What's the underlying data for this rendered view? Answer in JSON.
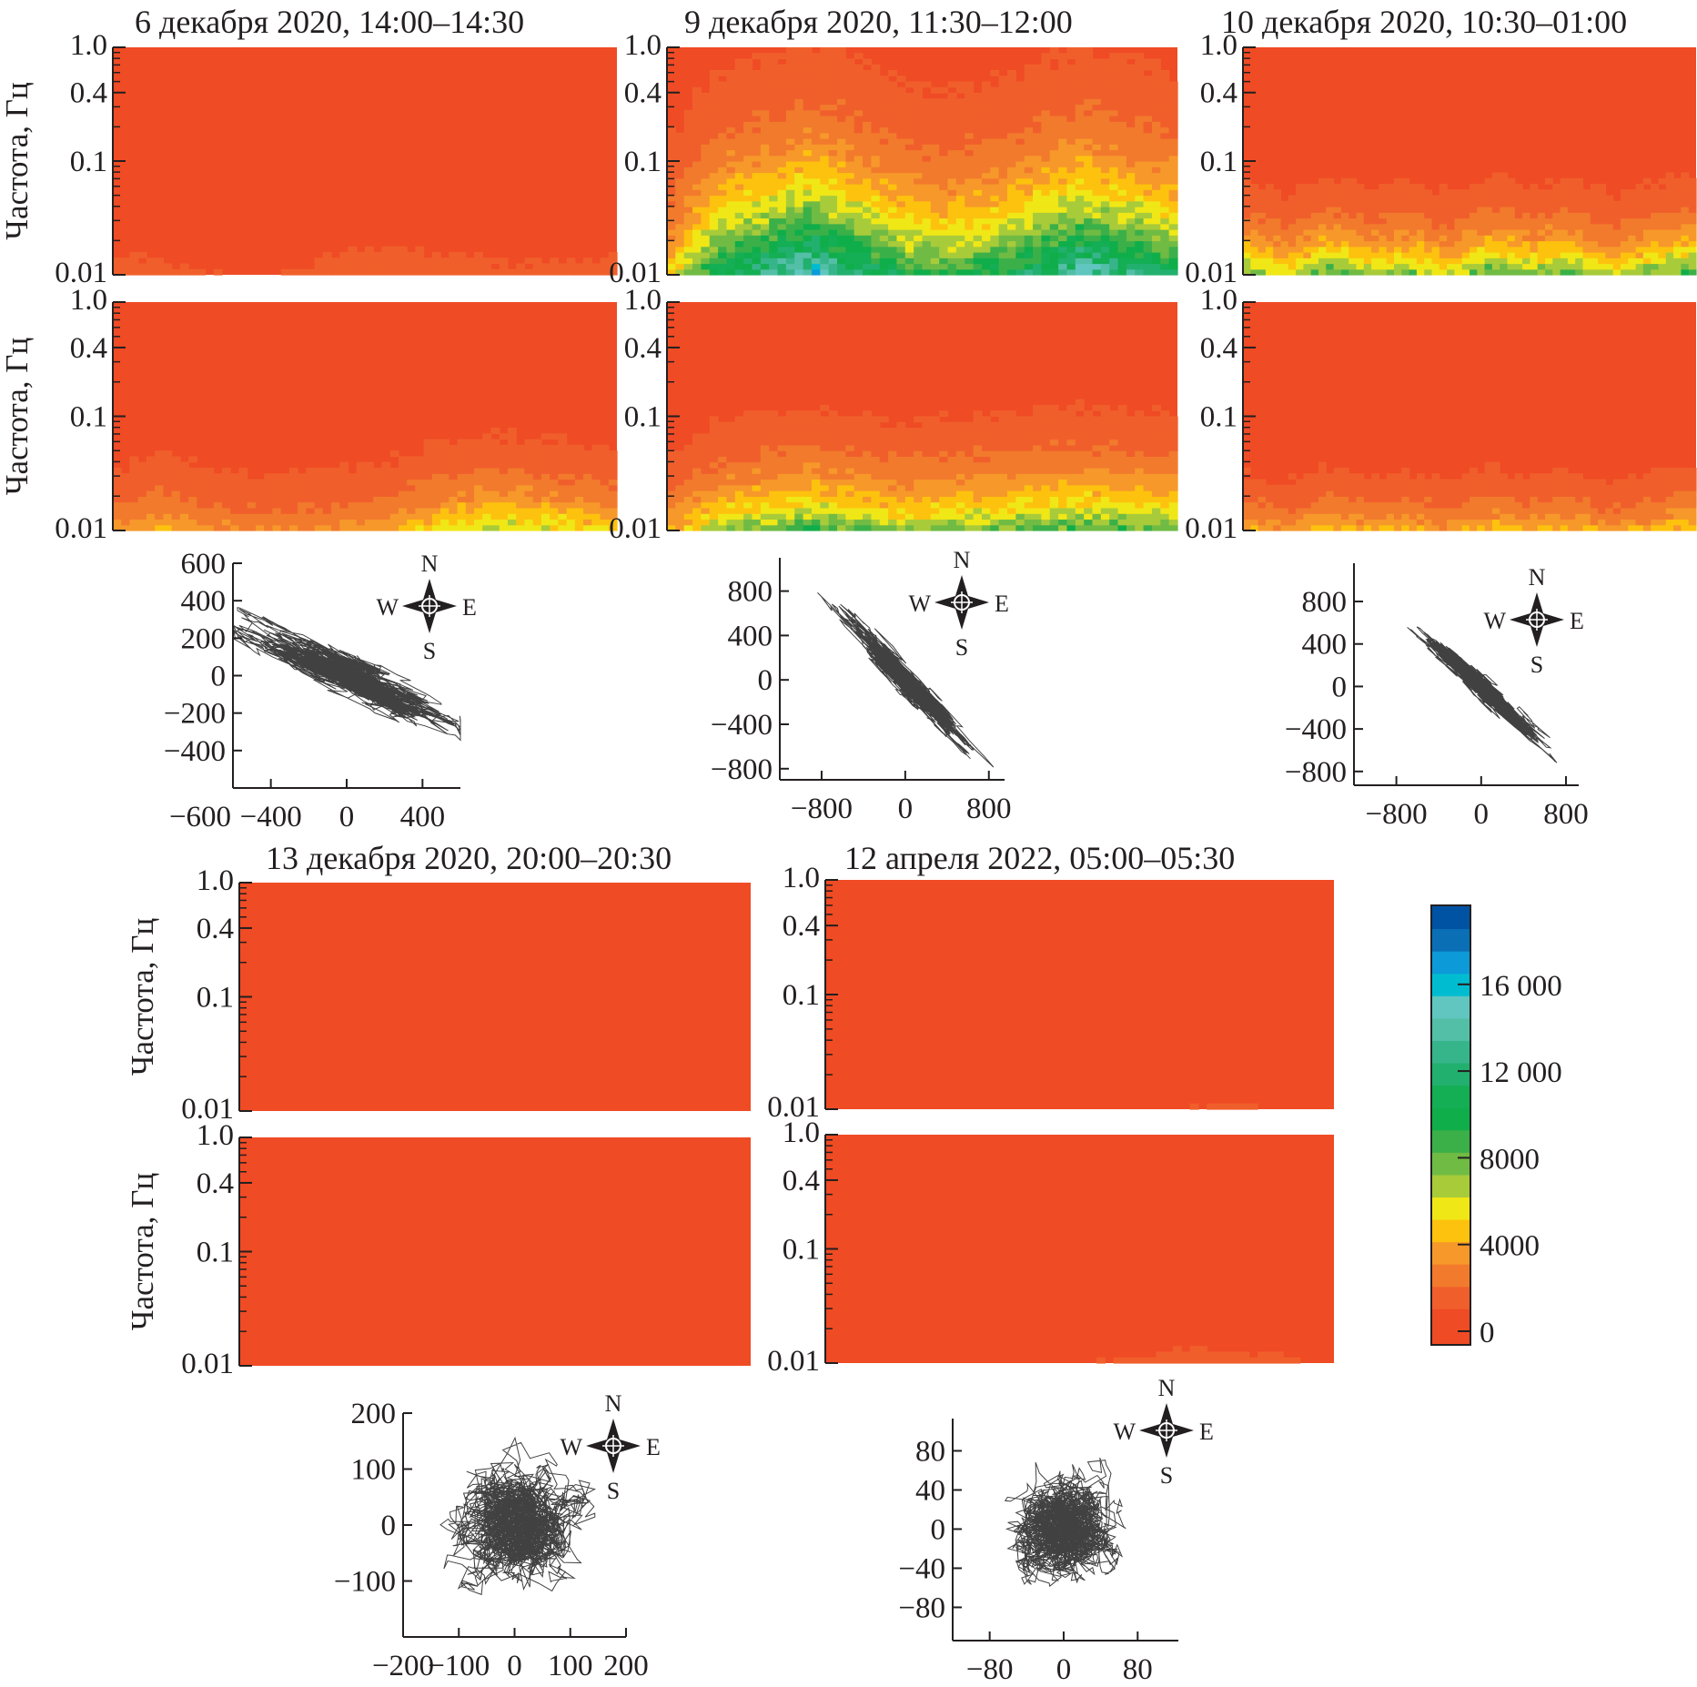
{
  "chart_data": {
    "type": "heatmap",
    "ylabel": "Частота, Гц",
    "yscale": "log",
    "ylim": [
      0.01,
      1.0
    ],
    "yticks": [
      "1.0",
      "0.4",
      "0.1",
      "0.01"
    ],
    "colorbar": {
      "range": [
        0,
        19600
      ],
      "ticks": [
        "0",
        "4000",
        "8000",
        "12 000",
        "16 000"
      ],
      "tick_values": [
        0,
        4000,
        8000,
        12000,
        16000
      ],
      "colors": [
        "#ef4b25",
        "#f05f2b",
        "#f27a2c",
        "#f7982a",
        "#fdc20e",
        "#f0e716",
        "#a8cb3a",
        "#70bb44",
        "#3bb049",
        "#0fae4a",
        "#14ae55",
        "#22b06e",
        "#37b58a",
        "#53bfa6",
        "#60c6bf",
        "#00bcd0",
        "#0d9ad8",
        "#0a6fb5",
        "#0052a2"
      ]
    },
    "events": [
      {
        "title": "6 декабря 2020, 14:00–14:30",
        "spectrograms": [
          {
            "component": 1,
            "low_freq_intensity": [
              1800,
              1500,
              1200,
              900,
              1200,
              1800,
              2000,
              1800,
              1500,
              1400,
              1500,
              1600
            ],
            "decay_decades": 0.35
          },
          {
            "component": 2,
            "low_freq_intensity": [
              3500,
              4500,
              3500,
              3000,
              3200,
              3500,
              3800,
              5500,
              6500,
              6500,
              6000,
              5000
            ],
            "decay_decades": 0.45
          }
        ],
        "hodograph": {
          "xlim": [
            -600,
            600
          ],
          "ylim": [
            -600,
            600
          ],
          "xticks": [
            "−600",
            "−400",
            "0",
            "400"
          ],
          "xtick_values": [
            -600,
            -400,
            0,
            400
          ],
          "yticks": [
            "600",
            "400",
            "200",
            "0",
            "−200",
            "−400"
          ],
          "ytick_values": [
            600,
            400,
            200,
            0,
            -200,
            -400
          ],
          "slope": -0.45,
          "major_std": 210,
          "minor_std": 45,
          "compass": [
            "N",
            "W",
            "E",
            "S"
          ]
        }
      },
      {
        "title": "9 декабря 2020, 11:30–12:00",
        "spectrograms": [
          {
            "component": 1,
            "low_freq_intensity": [
              5000,
              11000,
              13000,
              16000,
              13000,
              10000,
              9000,
              10000,
              12000,
              15000,
              13000,
              11000
            ],
            "decay_decades": 0.75
          },
          {
            "component": 2,
            "low_freq_intensity": [
              4000,
              7000,
              8000,
              9000,
              8000,
              7000,
              7500,
              8000,
              8500,
              9000,
              8500,
              8000
            ],
            "decay_decades": 0.5
          }
        ],
        "hodograph": {
          "xlim": [
            -1200,
            950
          ],
          "ylim": [
            -900,
            1100
          ],
          "xticks": [
            "−800",
            "0",
            "800"
          ],
          "xtick_values": [
            -800,
            0,
            800
          ],
          "yticks": [
            "800",
            "400",
            "0",
            "−400",
            "−800"
          ],
          "ytick_values": [
            800,
            400,
            0,
            -400,
            -800
          ],
          "slope": -0.95,
          "major_std": 230,
          "minor_std": 50,
          "compass": [
            "N",
            "W",
            "E",
            "S"
          ]
        }
      },
      {
        "title": "10 декабря 2020, 10:30–01:00",
        "spectrograms": [
          {
            "component": 1,
            "low_freq_intensity": [
              8000,
              6000,
              9000,
              7000,
              8000,
              6000,
              9000,
              7500,
              8500,
              6000,
              8000,
              9000
            ],
            "decay_decades": 0.4
          },
          {
            "component": 2,
            "low_freq_intensity": [
              4500,
              3500,
              5000,
              4000,
              4500,
              3500,
              5000,
              4000,
              5000,
              3500,
              4500,
              5000
            ],
            "decay_decades": 0.35
          }
        ],
        "hodograph": {
          "xlim": [
            -1200,
            920
          ],
          "ylim": [
            -930,
            1160
          ],
          "xticks": [
            "−800",
            "0",
            "800"
          ],
          "xtick_values": [
            -800,
            0,
            800
          ],
          "yticks": [
            "800",
            "400",
            "0",
            "−400",
            "−800"
          ],
          "ytick_values": [
            800,
            400,
            0,
            -400,
            -800
          ],
          "slope": -0.9,
          "major_std": 220,
          "minor_std": 45,
          "compass": [
            "N",
            "W",
            "E",
            "S"
          ]
        }
      },
      {
        "title": "13 декабря 2020, 20:00–20:30",
        "spectrograms": [
          {
            "component": 1,
            "low_freq_intensity": [
              300,
              300,
              300,
              300,
              300,
              300,
              300,
              300,
              300,
              300,
              300,
              300
            ],
            "decay_decades": 0.2
          },
          {
            "component": 2,
            "low_freq_intensity": [
              300,
              300,
              300,
              300,
              300,
              300,
              300,
              300,
              300,
              300,
              300,
              300
            ],
            "decay_decades": 0.2
          }
        ],
        "hodograph": {
          "xlim": [
            -200,
            200
          ],
          "ylim": [
            -200,
            200
          ],
          "xticks": [
            "−200",
            "−100",
            "0",
            "100",
            "200"
          ],
          "xtick_values": [
            -200,
            -100,
            0,
            100,
            200
          ],
          "yticks": [
            "200",
            "100",
            "0",
            "−100"
          ],
          "ytick_values": [
            200,
            100,
            0,
            -100
          ],
          "slope": 0,
          "major_std": 45,
          "minor_std": 45,
          "compass": [
            "N",
            "W",
            "E",
            "S"
          ]
        }
      },
      {
        "title": "12 апреля 2022, 05:00–05:30",
        "spectrograms": [
          {
            "component": 1,
            "low_freq_intensity": [
              300,
              300,
              300,
              300,
              300,
              300,
              300,
              300,
              1200,
              1500,
              1000,
              300
            ],
            "decay_decades": 0.15
          },
          {
            "component": 2,
            "low_freq_intensity": [
              300,
              300,
              300,
              300,
              300,
              300,
              1200,
              1600,
              1800,
              1700,
              1400,
              800
            ],
            "decay_decades": 0.2
          }
        ],
        "hodograph": {
          "xlim": [
            -120,
            124
          ],
          "ylim": [
            -114,
            113
          ],
          "xticks": [
            "−80",
            "0",
            "80"
          ],
          "xtick_values": [
            -80,
            0,
            80
          ],
          "yticks": [
            "80",
            "40",
            "0",
            "−40",
            "−80"
          ],
          "ytick_values": [
            80,
            40,
            0,
            -40,
            -80
          ],
          "slope": 0,
          "major_std": 24,
          "minor_std": 22,
          "compass": [
            "N",
            "W",
            "E",
            "S"
          ]
        }
      }
    ]
  }
}
